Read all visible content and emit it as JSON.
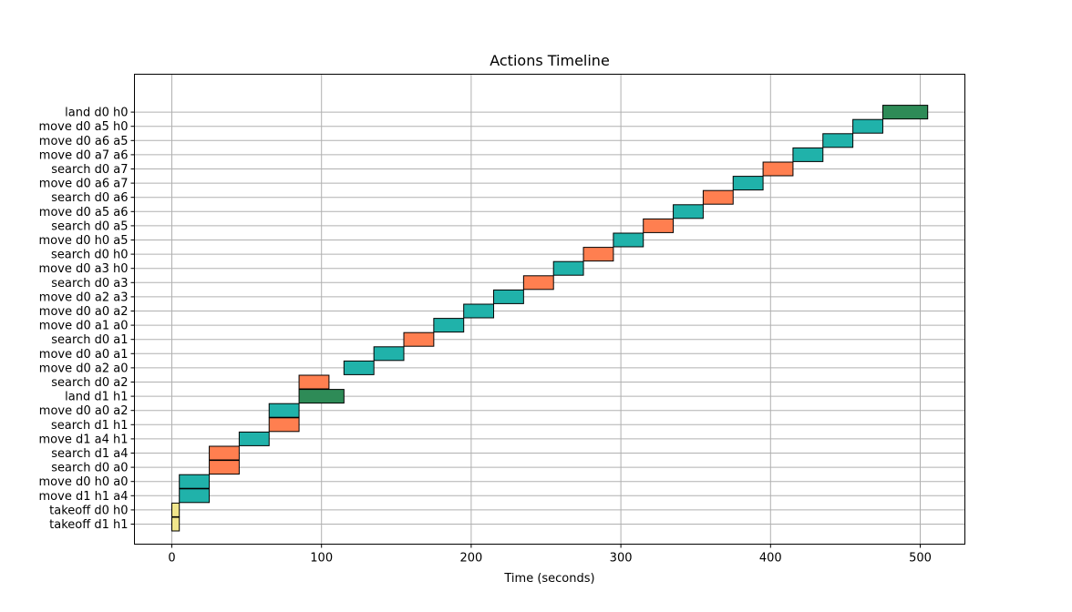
{
  "chart_data": {
    "type": "gantt",
    "title": "Actions Timeline",
    "xlabel": "Time (seconds)",
    "ylabel": "",
    "xlim": [
      -25,
      530
    ],
    "x_ticks": [
      0,
      100,
      200,
      300,
      400,
      500
    ],
    "grid": true,
    "legend": "none",
    "colors": {
      "takeoff": "#f0e68c",
      "move": "#20b2aa",
      "search": "#ff7f50",
      "land": "#2e8b57",
      "edge": "#000000",
      "grid": "#b0b0b0"
    },
    "actions": [
      {
        "label": "takeoff d1 h1",
        "start": 0,
        "end": 5,
        "kind": "takeoff"
      },
      {
        "label": "takeoff d0 h0",
        "start": 0,
        "end": 5,
        "kind": "takeoff"
      },
      {
        "label": "move d1 h1 a4",
        "start": 5,
        "end": 25,
        "kind": "move"
      },
      {
        "label": "move d0 h0 a0",
        "start": 5,
        "end": 25,
        "kind": "move"
      },
      {
        "label": "search d0 a0",
        "start": 25,
        "end": 45,
        "kind": "search"
      },
      {
        "label": "search d1 a4",
        "start": 25,
        "end": 45,
        "kind": "search"
      },
      {
        "label": "move d1 a4 h1",
        "start": 45,
        "end": 65,
        "kind": "move"
      },
      {
        "label": "search d1 h1",
        "start": 65,
        "end": 85,
        "kind": "search"
      },
      {
        "label": "move d0 a0 a2",
        "start": 65,
        "end": 85,
        "kind": "move"
      },
      {
        "label": "land d1 h1",
        "start": 85,
        "end": 115,
        "kind": "land"
      },
      {
        "label": "search d0 a2",
        "start": 85,
        "end": 105,
        "kind": "search"
      },
      {
        "label": "move d0 a2 a0",
        "start": 115,
        "end": 135,
        "kind": "move"
      },
      {
        "label": "move d0 a0 a1",
        "start": 135,
        "end": 155,
        "kind": "move"
      },
      {
        "label": "search d0 a1",
        "start": 155,
        "end": 175,
        "kind": "search"
      },
      {
        "label": "move d0 a1 a0",
        "start": 175,
        "end": 195,
        "kind": "move"
      },
      {
        "label": "move d0 a0 a2",
        "start": 195,
        "end": 215,
        "kind": "move"
      },
      {
        "label": "move d0 a2 a3",
        "start": 215,
        "end": 235,
        "kind": "move"
      },
      {
        "label": "search d0 a3",
        "start": 235,
        "end": 255,
        "kind": "search"
      },
      {
        "label": "move d0 a3 h0",
        "start": 255,
        "end": 275,
        "kind": "move"
      },
      {
        "label": "search d0 h0",
        "start": 275,
        "end": 295,
        "kind": "search"
      },
      {
        "label": "move d0 h0 a5",
        "start": 295,
        "end": 315,
        "kind": "move"
      },
      {
        "label": "search d0 a5",
        "start": 315,
        "end": 335,
        "kind": "search"
      },
      {
        "label": "move d0 a5 a6",
        "start": 335,
        "end": 355,
        "kind": "move"
      },
      {
        "label": "search d0 a6",
        "start": 355,
        "end": 375,
        "kind": "search"
      },
      {
        "label": "move d0 a6 a7",
        "start": 375,
        "end": 395,
        "kind": "move"
      },
      {
        "label": "search d0 a7",
        "start": 395,
        "end": 415,
        "kind": "search"
      },
      {
        "label": "move d0 a7 a6",
        "start": 415,
        "end": 435,
        "kind": "move"
      },
      {
        "label": "move d0 a6 a5",
        "start": 435,
        "end": 455,
        "kind": "move"
      },
      {
        "label": "move d0 a5 h0",
        "start": 455,
        "end": 475,
        "kind": "move"
      },
      {
        "label": "land d0 h0",
        "start": 475,
        "end": 505,
        "kind": "land"
      }
    ]
  }
}
